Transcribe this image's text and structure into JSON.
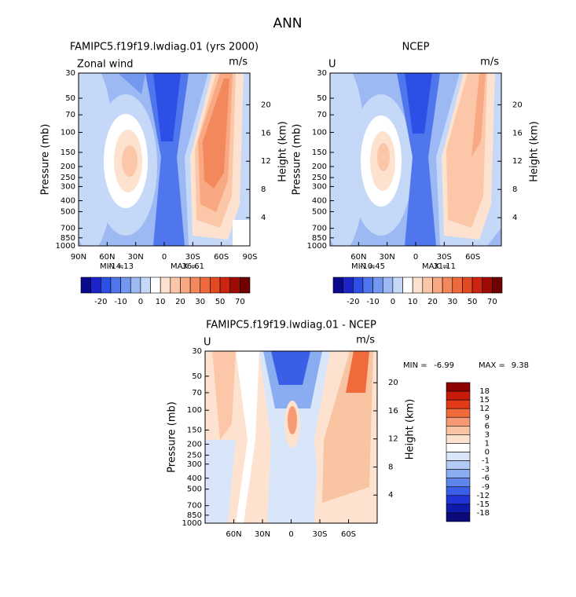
{
  "title": "ANN",
  "panels": [
    {
      "type": "contour",
      "title": "FAMIPC5.f19f19.lwdiag.01 (yrs 2000)",
      "left_label": "Zonal wind",
      "units": "m/s",
      "y_label": "Pressure (mb)",
      "y2_label": "Height (km)",
      "log_y": true,
      "ylim": [
        30,
        1000
      ],
      "yticks": [
        30,
        50,
        70,
        100,
        150,
        200,
        250,
        300,
        400,
        500,
        700,
        850,
        1000
      ],
      "y2lim": [
        24.5,
        0
      ],
      "y2ticks": [
        20,
        16,
        12,
        8,
        4
      ],
      "xlim": [
        90,
        -90
      ],
      "xticks": [
        {
          "value": 90,
          "label": "90N"
        },
        {
          "value": 60,
          "label": "60N"
        },
        {
          "value": 30,
          "label": "30N"
        },
        0,
        {
          "value": -30,
          "label": "30S"
        },
        {
          "value": -60,
          "label": "60S"
        },
        {
          "value": -90,
          "label": "90S"
        }
      ],
      "min_label": "MIN =",
      "min": -14.13,
      "max_label": "MAX =",
      "max": 36.61,
      "colorbar": {
        "orientation": "horizontal",
        "ticks": [
          -20,
          -10,
          0,
          10,
          20,
          30,
          50,
          70
        ],
        "colors": [
          "#0a0a8c",
          "#1c24c8",
          "#2e4fe6",
          "#4f76ec",
          "#7398f0",
          "#9cb9f4",
          "#c6d8f8",
          "#ffffff",
          "#fde3cf",
          "#fbc7a8",
          "#f8a882",
          "#f3885c",
          "#ee6a3c",
          "#e44a22",
          "#cc2410",
          "#9e0a04",
          "#700000"
        ]
      }
    },
    {
      "type": "contour",
      "title": "NCEP",
      "left_label": "U",
      "units": "m/s",
      "y_label": "Pressure (mb)",
      "y2_label": "Height (km)",
      "log_y": true,
      "ylim": [
        30,
        1000
      ],
      "yticks": [
        30,
        50,
        70,
        100,
        150,
        200,
        250,
        300,
        400,
        500,
        700,
        850,
        1000
      ],
      "y2lim": [
        24.5,
        0
      ],
      "y2ticks": [
        20,
        16,
        12,
        8,
        4
      ],
      "xlim": [
        90,
        -90
      ],
      "xticks": [
        {
          "value": 60,
          "label": "60N"
        },
        {
          "value": 30,
          "label": "30N"
        },
        0,
        {
          "value": -30,
          "label": "30S"
        },
        {
          "value": -60,
          "label": "60S"
        }
      ],
      "min_label": "MIN =",
      "min": -10.45,
      "max_label": "MAX =",
      "max": 31.11,
      "colorbar": {
        "orientation": "horizontal",
        "ticks": [
          -20,
          -10,
          0,
          10,
          20,
          30,
          50,
          70
        ],
        "colors": [
          "#0a0a8c",
          "#1c24c8",
          "#2e4fe6",
          "#4f76ec",
          "#7398f0",
          "#9cb9f4",
          "#c6d8f8",
          "#ffffff",
          "#fde3cf",
          "#fbc7a8",
          "#f8a882",
          "#f3885c",
          "#ee6a3c",
          "#e44a22",
          "#cc2410",
          "#9e0a04",
          "#700000"
        ]
      }
    },
    {
      "type": "contour",
      "title": "FAMIPC5.f19f19.lwdiag.01 - NCEP",
      "left_label": "U",
      "units": "m/s",
      "y_label": "Pressure (mb)",
      "y2_label": "Height (km)",
      "log_y": true,
      "ylim": [
        30,
        1000
      ],
      "yticks": [
        30,
        50,
        70,
        100,
        150,
        200,
        250,
        300,
        400,
        500,
        700,
        850,
        1000
      ],
      "y2lim": [
        24.5,
        0
      ],
      "y2ticks": [
        20,
        16,
        12,
        8,
        4
      ],
      "xlim": [
        90,
        -90
      ],
      "xticks": [
        {
          "value": 60,
          "label": "60N"
        },
        {
          "value": 30,
          "label": "30N"
        },
        0,
        {
          "value": -30,
          "label": "30S"
        },
        {
          "value": -60,
          "label": "60S"
        }
      ],
      "min_label": "MIN =",
      "min": -6.99,
      "max_label": "MAX =",
      "max": 9.38,
      "colorbar": {
        "orientation": "vertical",
        "ticks": [
          18,
          15,
          12,
          9,
          6,
          3,
          1,
          0,
          -1,
          -3,
          -6,
          -9,
          -12,
          -15,
          -18
        ],
        "colors": [
          "#8c0000",
          "#c81a08",
          "#e23a18",
          "#f06a3c",
          "#f59a72",
          "#f9c4a2",
          "#fde3cf",
          "#ffffff",
          "#d9e6fa",
          "#b3cbf6",
          "#8aacf0",
          "#5f85ec",
          "#3a5ee6",
          "#2035d6",
          "#101aa8",
          "#0a0a7a"
        ]
      }
    }
  ]
}
